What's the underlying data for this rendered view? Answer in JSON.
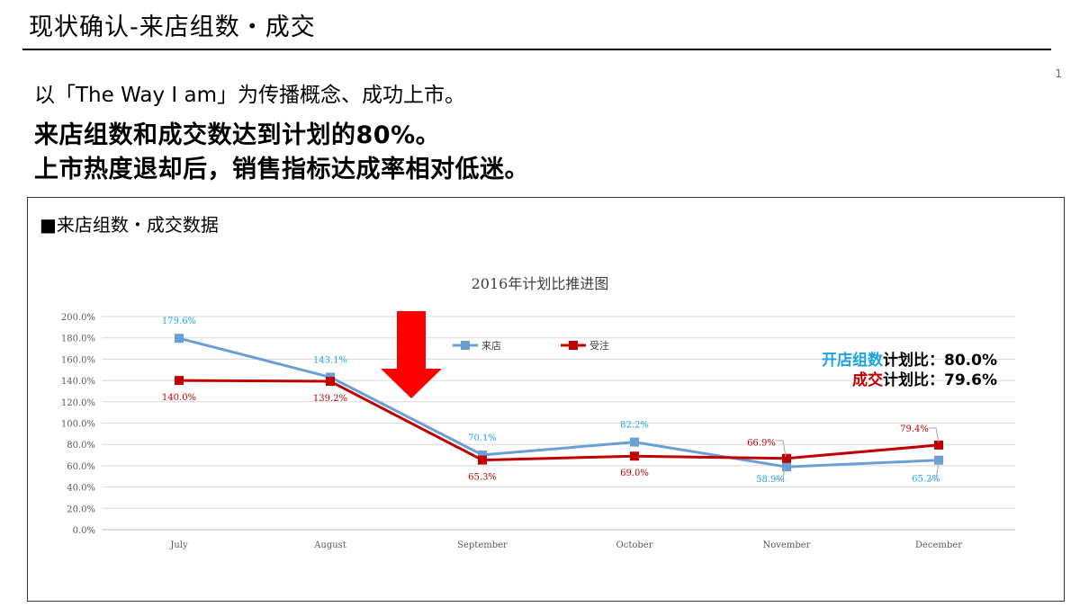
{
  "slide": {
    "title": "现状确认-来店组数・成交",
    "page_number": "1",
    "intro": "以「The Way I am」为传播概念、成功上市。",
    "headline_1": "来店组数和成交数达到计划的80%。",
    "headline_2": "上市热度退却后，销售指标达成率相对低迷。"
  },
  "panel": {
    "heading": "■来店组数・成交数据"
  },
  "ratios": {
    "visits_prefix": "开店组数",
    "visits_suffix": "计划比：80.0%",
    "deals_prefix": "成交",
    "deals_suffix": "计划比：79.6%"
  },
  "colors": {
    "visits": "#6B9FD4",
    "deals": "#C00000",
    "visits_label": "#1AA6E0",
    "deals_label": "#C00000",
    "arrow": "#FF0000"
  },
  "chart_data": {
    "type": "line",
    "title": "2016年计划比推进图",
    "categories": [
      "July",
      "August",
      "September",
      "October",
      "November",
      "December"
    ],
    "series": [
      {
        "name": "来店",
        "values": [
          179.6,
          143.1,
          70.1,
          82.2,
          58.9,
          65.2
        ],
        "labels": [
          "179.6%",
          "143.1%",
          "70.1%",
          "82.2%",
          "58.9%",
          "65.2%"
        ]
      },
      {
        "name": "受注",
        "values": [
          140.0,
          139.2,
          65.3,
          69.0,
          66.9,
          79.4
        ],
        "labels": [
          "140.0%",
          "139.2%",
          "65.3%",
          "69.0%",
          "66.9%",
          "79.4%"
        ]
      }
    ],
    "ylim": [
      0,
      200
    ],
    "y_ticks": [
      "0.0%",
      "20.0%",
      "40.0%",
      "60.0%",
      "80.0%",
      "100.0%",
      "120.0%",
      "140.0%",
      "160.0%",
      "180.0%",
      "200.0%"
    ],
    "grid": true,
    "legend": "top-center"
  }
}
